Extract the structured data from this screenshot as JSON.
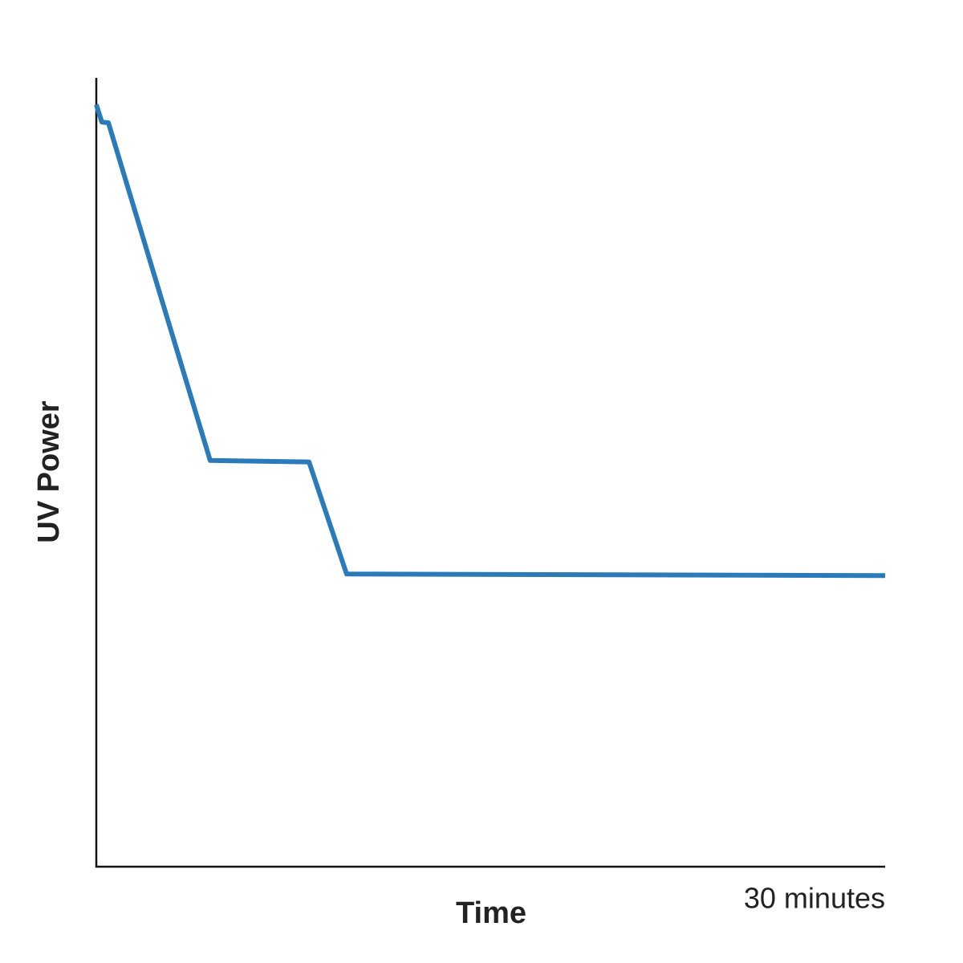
{
  "chart_data": {
    "type": "line",
    "x_label": "Time",
    "y_label": "UV Power",
    "x": [
      0,
      0.21,
      0.46,
      4.33,
      8.09,
      9.52,
      30
    ],
    "values": [
      96.6,
      94.4,
      94.3,
      51.5,
      51.3,
      37.1,
      36.9
    ],
    "color": "#2b7bba",
    "xlim": [
      0,
      30
    ],
    "ylim": [
      0,
      100
    ],
    "xticks": [
      {
        "value": 30,
        "label": "30 minutes"
      }
    ]
  }
}
